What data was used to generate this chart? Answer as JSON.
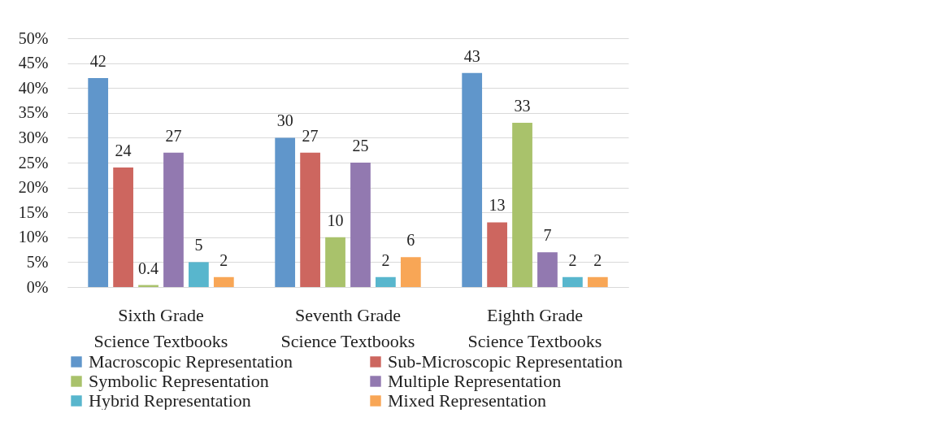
{
  "chart_data": {
    "type": "bar",
    "categories": [
      "Sixth Grade Science Textbooks",
      "Seventh Grade Science Textbooks",
      "Eighth Grade Science Textbooks"
    ],
    "series": [
      {
        "name": "Macroscopic Representation",
        "color": "#6096cb",
        "values": [
          42,
          30,
          43
        ]
      },
      {
        "name": "Sub-Microscopic Representation",
        "color": "#cd665f",
        "values": [
          24,
          27,
          13
        ]
      },
      {
        "name": "Symbolic Representation",
        "color": "#a9c26b",
        "values": [
          0.4,
          10,
          33
        ]
      },
      {
        "name": "Multiple Representation",
        "color": "#9279b0",
        "values": [
          27,
          25,
          7
        ]
      },
      {
        "name": "Hybrid Representation",
        "color": "#58b6cd",
        "values": [
          5,
          2,
          2
        ]
      },
      {
        "name": "Mixed Representation",
        "color": "#f8a656",
        "values": [
          2,
          6,
          2
        ]
      }
    ],
    "ylim": [
      0,
      50
    ],
    "yticks": [
      {
        "value": 0,
        "label": "0%"
      },
      {
        "value": 5,
        "label": "5%"
      },
      {
        "value": 10,
        "label": "10%"
      },
      {
        "value": 15,
        "label": "15%"
      },
      {
        "value": 20,
        "label": "20%"
      },
      {
        "value": 25,
        "label": "25%"
      },
      {
        "value": 30,
        "label": "30%"
      },
      {
        "value": 35,
        "label": "35%"
      },
      {
        "value": 40,
        "label": "40%"
      },
      {
        "value": 45,
        "label": "45%"
      },
      {
        "value": 50,
        "label": "50%"
      }
    ],
    "grid": "y",
    "legend": "bottom",
    "data_labels": true
  }
}
